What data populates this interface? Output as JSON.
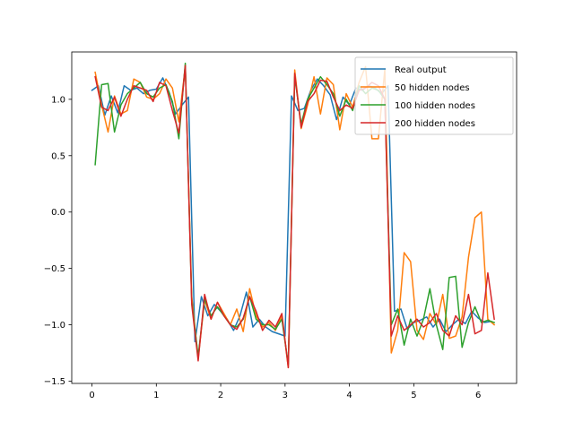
{
  "chart_data": {
    "type": "line",
    "title": "",
    "xlabel": "",
    "ylabel": "",
    "xlim": [
      -0.314,
      6.597
    ],
    "ylim": [
      -1.52,
      1.42
    ],
    "xticks": [
      0,
      1,
      2,
      3,
      4,
      5,
      6
    ],
    "xtick_labels": [
      "0",
      "1",
      "2",
      "3",
      "4",
      "5",
      "6"
    ],
    "yticks": [
      -1.5,
      -1.0,
      -0.5,
      0.0,
      0.5,
      1.0
    ],
    "ytick_labels": [
      "−1.5",
      "−1.0",
      "−0.5",
      "0.0",
      "0.5",
      "1.0"
    ],
    "grid": false,
    "legend_position": "top-right",
    "x": [
      0.0,
      0.1,
      0.2,
      0.3,
      0.4,
      0.5,
      0.6,
      0.7,
      0.8,
      0.9,
      1.0,
      1.1,
      1.2,
      1.3,
      1.4,
      1.5,
      1.6,
      1.7,
      1.8,
      1.9,
      2.0,
      2.1,
      2.2,
      2.3,
      2.4,
      2.5,
      2.6,
      2.7,
      2.8,
      2.9,
      3.0,
      3.1,
      3.2,
      3.3,
      3.4,
      3.5,
      3.6,
      3.7,
      3.8,
      3.9,
      4.0,
      4.1,
      4.2,
      4.3,
      4.4,
      4.5,
      4.6,
      4.7,
      4.8,
      4.9,
      5.0,
      5.1,
      5.2,
      5.3,
      5.4,
      5.5,
      5.6,
      5.7,
      5.8,
      5.9,
      6.0,
      6.1,
      6.2
    ],
    "series": [
      {
        "name": "Real output",
        "color": "#1f77b4",
        "x": [
          0.0,
          0.1,
          0.2,
          0.3,
          0.4,
          0.5,
          0.6,
          0.7,
          0.8,
          0.9,
          1.0,
          1.1,
          1.2,
          1.3,
          1.4,
          1.5,
          1.6,
          1.7,
          1.8,
          1.9,
          2.0,
          2.1,
          2.2,
          2.3,
          2.4,
          2.5,
          2.6,
          2.7,
          2.8,
          2.9,
          3.0,
          3.1,
          3.2,
          3.3,
          3.4,
          3.5,
          3.6,
          3.7,
          3.8,
          3.9,
          4.0,
          4.1,
          4.2,
          4.3,
          4.4,
          4.5,
          4.6,
          4.7,
          4.8,
          4.9,
          5.0,
          5.1,
          5.2,
          5.3,
          5.4,
          5.5,
          5.6,
          5.7,
          5.8,
          5.9,
          6.0,
          6.1,
          6.2
        ],
        "values": [
          1.08,
          1.12,
          0.86,
          1.03,
          0.88,
          1.12,
          1.08,
          1.1,
          1.05,
          1.08,
          1.09,
          1.19,
          1.06,
          0.87,
          0.95,
          1.02,
          -1.15,
          -0.75,
          -0.92,
          -0.82,
          -0.88,
          -0.95,
          -1.05,
          -0.92,
          -0.71,
          -1.02,
          -0.95,
          -1.02,
          -1.06,
          -1.08,
          -1.1,
          1.03,
          0.9,
          0.92,
          1.08,
          1.18,
          1.12,
          1.04,
          0.82,
          1.02,
          0.95,
          1.1,
          1.08,
          1.12,
          1.1,
          1.05,
          1.12,
          -0.88,
          -0.86,
          -1.04,
          -0.98,
          -0.96,
          -0.93,
          -1.02,
          -0.95,
          -1.06,
          -1.0,
          -0.95,
          -0.99,
          -0.88,
          -0.94,
          -0.98,
          -0.97
        ]
      },
      {
        "name": "50 hidden nodes",
        "color": "#ff7f0e",
        "x": [
          0.05,
          0.15,
          0.25,
          0.35,
          0.45,
          0.55,
          0.65,
          0.75,
          0.85,
          0.95,
          1.05,
          1.15,
          1.25,
          1.35,
          1.45,
          1.55,
          1.65,
          1.75,
          1.85,
          1.95,
          2.05,
          2.15,
          2.25,
          2.35,
          2.45,
          2.55,
          2.65,
          2.75,
          2.85,
          2.95,
          3.05,
          3.15,
          3.25,
          3.35,
          3.45,
          3.55,
          3.65,
          3.75,
          3.85,
          3.95,
          4.05,
          4.15,
          4.25,
          4.35,
          4.45,
          4.55,
          4.65,
          4.75,
          4.85,
          4.95,
          5.05,
          5.15,
          5.25,
          5.35,
          5.45,
          5.55,
          5.65,
          5.75,
          5.85,
          5.95,
          6.05,
          6.15,
          6.25
        ],
        "values": [
          1.24,
          0.95,
          0.71,
          1.03,
          0.87,
          0.9,
          1.18,
          1.15,
          1.02,
          1.0,
          1.05,
          1.18,
          1.1,
          0.8,
          1.29,
          -0.75,
          -1.3,
          -0.78,
          -0.95,
          -0.8,
          -0.9,
          -1.0,
          -0.86,
          -1.06,
          -0.68,
          -0.92,
          -1.02,
          -0.98,
          -1.05,
          -0.92,
          -1.38,
          1.26,
          0.74,
          0.95,
          1.2,
          0.87,
          1.19,
          1.13,
          0.73,
          1.05,
          0.93,
          1.15,
          1.29,
          0.65,
          0.65,
          1.27,
          -1.25,
          -1.05,
          -0.36,
          -0.44,
          -1.05,
          -1.13,
          -0.9,
          -1.0,
          -0.73,
          -1.12,
          -1.1,
          -0.93,
          -0.4,
          -0.05,
          0.0,
          -0.95,
          -1.0
        ]
      },
      {
        "name": "100 hidden nodes",
        "color": "#2ca02c",
        "x": [
          0.05,
          0.15,
          0.25,
          0.35,
          0.45,
          0.55,
          0.65,
          0.75,
          0.85,
          0.95,
          1.05,
          1.15,
          1.25,
          1.35,
          1.45,
          1.55,
          1.65,
          1.75,
          1.85,
          1.95,
          2.05,
          2.15,
          2.25,
          2.35,
          2.45,
          2.55,
          2.65,
          2.75,
          2.85,
          2.95,
          3.05,
          3.15,
          3.25,
          3.35,
          3.45,
          3.55,
          3.65,
          3.75,
          3.85,
          3.95,
          4.05,
          4.15,
          4.25,
          4.35,
          4.45,
          4.55,
          4.65,
          4.75,
          4.85,
          4.95,
          5.05,
          5.15,
          5.25,
          5.35,
          5.45,
          5.55,
          5.65,
          5.75,
          5.85,
          5.95,
          6.05,
          6.15,
          6.25
        ],
        "values": [
          0.42,
          1.13,
          1.14,
          0.71,
          0.95,
          1.05,
          1.1,
          1.15,
          1.05,
          1.02,
          1.1,
          1.13,
          0.98,
          0.65,
          1.32,
          -0.8,
          -1.28,
          -0.77,
          -0.92,
          -0.84,
          -0.92,
          -1.0,
          -1.02,
          -0.95,
          -0.75,
          -0.95,
          -1.0,
          -1.0,
          -1.04,
          -0.95,
          -1.35,
          1.2,
          0.78,
          1.0,
          1.1,
          1.2,
          1.13,
          1.05,
          0.85,
          1.0,
          0.9,
          1.12,
          1.05,
          1.1,
          1.08,
          1.0,
          -1.0,
          -0.86,
          -1.18,
          -0.95,
          -1.1,
          -0.95,
          -0.68,
          -1.0,
          -1.22,
          -0.58,
          -0.57,
          -1.2,
          -0.98,
          -0.84,
          -0.98,
          -0.96,
          -0.98
        ]
      },
      {
        "name": "200 hidden nodes",
        "color": "#d62728",
        "x": [
          0.05,
          0.15,
          0.25,
          0.35,
          0.45,
          0.55,
          0.65,
          0.75,
          0.85,
          0.95,
          1.05,
          1.15,
          1.25,
          1.35,
          1.45,
          1.55,
          1.65,
          1.75,
          1.85,
          1.95,
          2.05,
          2.15,
          2.25,
          2.35,
          2.45,
          2.55,
          2.65,
          2.75,
          2.85,
          2.95,
          3.05,
          3.15,
          3.25,
          3.35,
          3.45,
          3.55,
          3.65,
          3.75,
          3.85,
          3.95,
          4.05,
          4.15,
          4.25,
          4.35,
          4.45,
          4.55,
          4.65,
          4.75,
          4.85,
          4.95,
          5.05,
          5.15,
          5.25,
          5.35,
          5.45,
          5.55,
          5.65,
          5.75,
          5.85,
          5.95,
          6.05,
          6.15,
          6.25
        ],
        "values": [
          1.2,
          0.93,
          0.9,
          1.02,
          0.85,
          1.0,
          1.12,
          1.1,
          1.08,
          0.98,
          1.15,
          1.12,
          0.9,
          0.7,
          1.3,
          -0.82,
          -1.32,
          -0.73,
          -0.95,
          -0.8,
          -0.92,
          -1.0,
          -1.04,
          -0.94,
          -0.75,
          -0.88,
          -1.05,
          -0.96,
          -1.02,
          -0.9,
          -1.38,
          1.23,
          0.75,
          0.98,
          1.05,
          1.17,
          1.16,
          1.02,
          0.9,
          0.95,
          0.92,
          1.08,
          1.1,
          1.15,
          1.12,
          1.0,
          -1.1,
          -0.92,
          -1.05,
          -1.0,
          -0.95,
          -1.02,
          -0.98,
          -0.9,
          -1.05,
          -1.1,
          -0.92,
          -1.0,
          -0.73,
          -1.08,
          -1.05,
          -0.54,
          -0.95
        ]
      }
    ]
  }
}
